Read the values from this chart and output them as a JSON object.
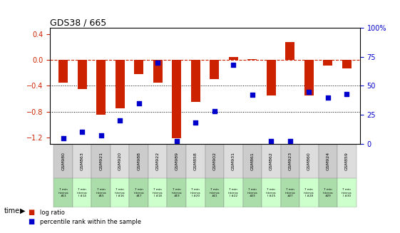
{
  "title": "GDS38 / 665",
  "categories": [
    "GSM980",
    "GSM863",
    "GSM921",
    "GSM920",
    "GSM988",
    "GSM922",
    "GSM989",
    "GSM858",
    "GSM902",
    "GSM931",
    "GSM861",
    "GSM862",
    "GSM923",
    "GSM860",
    "GSM924",
    "GSM859"
  ],
  "time_labels": [
    "7 min\ninterva\n#13",
    "7 min\ninterva\nl #14",
    "7 min\ninterva\n#15",
    "7 min\ninterva\nl #16",
    "7 min\ninterva\n#17",
    "7 min\ninterva\nl #18",
    "7 min\ninterva\n#19",
    "7 min\ninterva\nl #20",
    "7 min\ninterva\n#21",
    "7 min\ninterva\nl #22",
    "7 min\ninterva\n#23",
    "7 min\ninterva\nl #25",
    "7 min\ninterva\n#27",
    "7 min\ninterva\nl #28",
    "7 min\ninterva\n#29",
    "7 min\ninterva\nl #30"
  ],
  "log_ratio": [
    -0.35,
    -0.45,
    -0.85,
    -0.75,
    -0.22,
    -0.35,
    -1.22,
    -0.65,
    -0.3,
    0.05,
    0.02,
    -0.55,
    0.28,
    -0.55,
    -0.09,
    -0.13
  ],
  "percentile": [
    5,
    10,
    7,
    20,
    35,
    70,
    2,
    18,
    28,
    68,
    42,
    2,
    2,
    45,
    40,
    43
  ],
  "ylim_left": [
    -1.3,
    0.5
  ],
  "ylim_right": [
    0,
    100
  ],
  "yticks_left": [
    0.4,
    0,
    -0.4,
    -0.8,
    -1.2
  ],
  "yticks_right": [
    100,
    75,
    50,
    25,
    0
  ],
  "bar_color": "#cc2200",
  "dot_color": "#0000cc",
  "dashed_color": "#cc2200",
  "bg_color": "#ffffff",
  "plot_bg": "#ffffff",
  "grid_color": "#000000",
  "label_color_left": "#cc2200",
  "label_color_right": "#0000cc",
  "gsm_bg_odd": "#cccccc",
  "gsm_bg_even": "#dddddd",
  "time_bg_light": "#ccffcc",
  "time_bg_dark": "#aaddaa"
}
